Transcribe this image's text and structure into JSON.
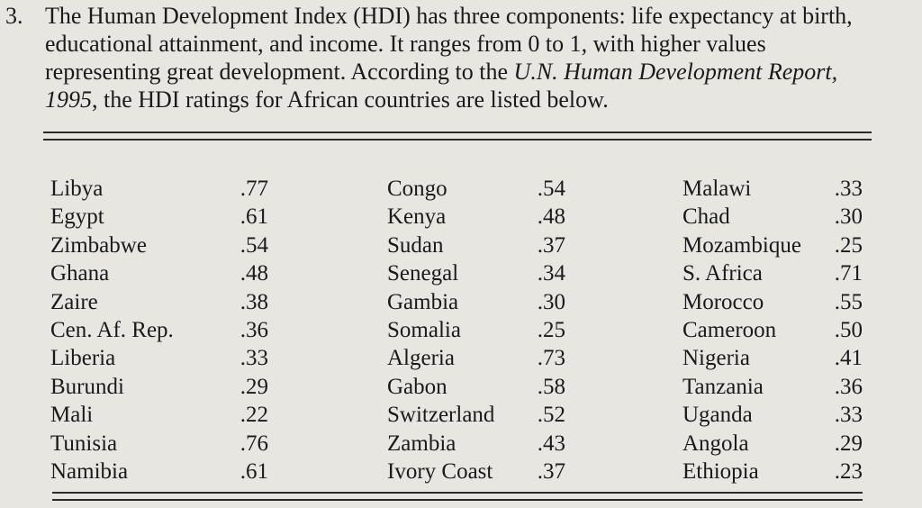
{
  "problem": {
    "number": "3.",
    "lines": [
      "The Human Development Index (HDI) has three components: life expectancy at birth,",
      "educational attainment, and income.  It ranges from 0 to 1, with higher values",
      "representing great development.  According to the U.N. Human Development Report,",
      "1995, the HDI ratings for African countries are listed below."
    ]
  },
  "table": {
    "columns": [
      [
        {
          "country": "Libya",
          "hdi": ".77"
        },
        {
          "country": "Egypt",
          "hdi": ".61"
        },
        {
          "country": "Zimbabwe",
          "hdi": ".54"
        },
        {
          "country": "Ghana",
          "hdi": ".48"
        },
        {
          "country": "Zaire",
          "hdi": ".38"
        },
        {
          "country": "Cen. Af. Rep.",
          "hdi": ".36"
        },
        {
          "country": "Liberia",
          "hdi": ".33"
        },
        {
          "country": "Burundi",
          "hdi": ".29"
        },
        {
          "country": "Mali",
          "hdi": ".22"
        },
        {
          "country": "Tunisia",
          "hdi": ".76"
        },
        {
          "country": "Namibia",
          "hdi": ".61"
        }
      ],
      [
        {
          "country": "Congo",
          "hdi": ".54"
        },
        {
          "country": "Kenya",
          "hdi": ".48"
        },
        {
          "country": "Sudan",
          "hdi": ".37"
        },
        {
          "country": "Senegal",
          "hdi": ".34"
        },
        {
          "country": "Gambia",
          "hdi": ".30"
        },
        {
          "country": "Somalia",
          "hdi": ".25"
        },
        {
          "country": "Algeria",
          "hdi": ".73"
        },
        {
          "country": "Gabon",
          "hdi": ".58"
        },
        {
          "country": "Switzerland",
          "hdi": ".52"
        },
        {
          "country": "Zambia",
          "hdi": ".43"
        },
        {
          "country": "Ivory Coast",
          "hdi": ".37"
        }
      ],
      [
        {
          "country": "Malawi",
          "hdi": ".33"
        },
        {
          "country": "Chad",
          "hdi": ".30"
        },
        {
          "country": "Mozambique",
          "hdi": ".25"
        },
        {
          "country": "S. Africa",
          "hdi": ".71"
        },
        {
          "country": "Morocco",
          "hdi": ".55"
        },
        {
          "country": "Cameroon",
          "hdi": ".50"
        },
        {
          "country": "Nigeria",
          "hdi": ".41"
        },
        {
          "country": "Tanzania",
          "hdi": ".36"
        },
        {
          "country": "Uganda",
          "hdi": ".33"
        },
        {
          "country": "Angola",
          "hdi": ".29"
        },
        {
          "country": "Ethiopia",
          "hdi": ".23"
        }
      ]
    ]
  }
}
